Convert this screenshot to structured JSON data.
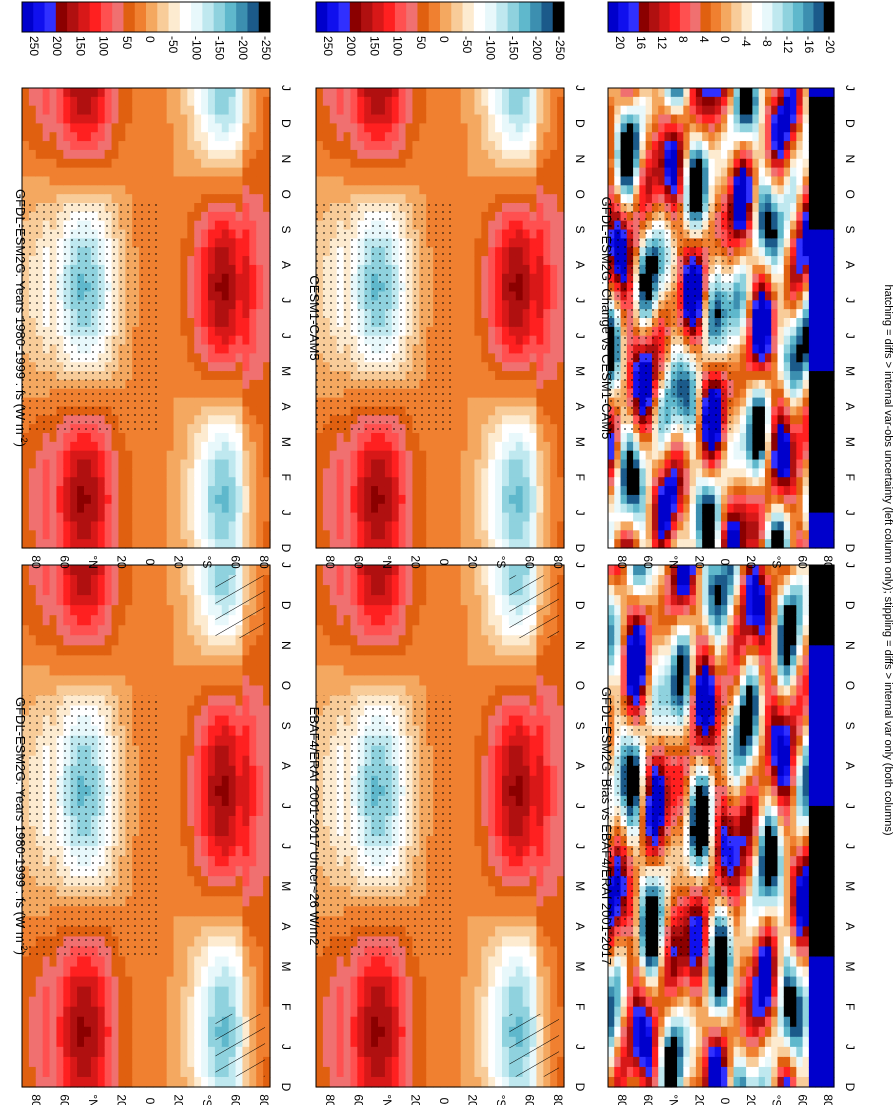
{
  "figure_caption": "hatching = diffs > internal var-obs uncertainty (left column only); stippling = diffs > internal var only (both columns)",
  "chart_data": [
    {
      "type": "heatmap",
      "title": "GFDL-ESM2G: Years 1980-1999 : fs (W m",
      "title_sup": "-2",
      "title_end": ")",
      "x_ticks": [
        "D",
        "J",
        "F",
        "M",
        "A",
        "M",
        "J",
        "J",
        "A",
        "S",
        "O",
        "N",
        "D",
        "J"
      ],
      "y_ticks": [
        "80",
        "60",
        "°N",
        "20",
        "0",
        "20",
        "°S",
        "60",
        "80"
      ],
      "colorbar": {
        "labels": [
          "250",
          "200",
          "150",
          "100",
          "50",
          "0",
          "-50",
          "-100",
          "-150",
          "-200",
          "-250"
        ],
        "range": [
          -250,
          250
        ]
      },
      "field": "seasonal_cycle_flux",
      "hatching": true
    },
    {
      "type": "heatmap",
      "title": "GFDL-ESM2G: Years 1980-1999 : fs (W m",
      "title_sup": "-2",
      "title_end": ")",
      "x_ticks": [
        "D",
        "J",
        "F",
        "M",
        "A",
        "M",
        "J",
        "J",
        "A",
        "S",
        "O",
        "N",
        "D",
        "J"
      ],
      "y_ticks": [
        "80",
        "60",
        "°N",
        "20",
        "0",
        "20",
        "°S",
        "60",
        "80"
      ],
      "colorbar": {
        "labels": [
          "250",
          "200",
          "150",
          "100",
          "50",
          "0",
          "-50",
          "-100",
          "-150",
          "-200",
          "-250"
        ],
        "range": [
          -250,
          250
        ]
      },
      "field": "seasonal_cycle_flux",
      "hatching": false
    },
    {
      "type": "heatmap",
      "title": "EBAF4/ERAI 2001-2017 Uncer~26 W/m2",
      "x_ticks": [
        "D",
        "J",
        "F",
        "M",
        "A",
        "M",
        "J",
        "J",
        "A",
        "S",
        "O",
        "N",
        "D",
        "J"
      ],
      "y_ticks": [
        "80",
        "60",
        "°N",
        "20",
        "0",
        "20",
        "°S",
        "60",
        "80"
      ],
      "colorbar": {
        "labels": [
          "250",
          "200",
          "150",
          "100",
          "50",
          "0",
          "-50",
          "-100",
          "-150",
          "-200",
          "-250"
        ],
        "range": [
          -250,
          250
        ]
      },
      "field": "seasonal_cycle_flux",
      "hatching": true
    },
    {
      "type": "heatmap",
      "title": "CESM1-CAM5",
      "x_ticks": [
        "D",
        "J",
        "F",
        "M",
        "A",
        "M",
        "J",
        "J",
        "A",
        "S",
        "O",
        "N",
        "D",
        "J"
      ],
      "y_ticks": [
        "80",
        "60",
        "°N",
        "20",
        "0",
        "20",
        "°S",
        "60",
        "80"
      ],
      "colorbar": {
        "labels": [
          "250",
          "200",
          "150",
          "100",
          "50",
          "0",
          "-50",
          "-100",
          "-150",
          "-200",
          "-250"
        ],
        "range": [
          -250,
          250
        ]
      },
      "field": "seasonal_cycle_flux",
      "hatching": false
    },
    {
      "type": "heatmap",
      "title": "GFDL-ESM2G: Bias vs EBAF4/ERAI 2001-2017",
      "x_ticks": [
        "D",
        "J",
        "F",
        "M",
        "A",
        "M",
        "J",
        "J",
        "A",
        "S",
        "O",
        "N",
        "D",
        "J"
      ],
      "y_ticks": [
        "80",
        "60",
        "°N",
        "20",
        "0",
        "20",
        "°S",
        "60",
        "80"
      ],
      "colorbar": {
        "labels": [
          "20",
          "16",
          "12",
          "8",
          "4",
          "0",
          "-4",
          "-8",
          "-12",
          "-16",
          "-20"
        ],
        "range": [
          -20,
          20
        ]
      },
      "field": "bias",
      "hatching": false
    },
    {
      "type": "heatmap",
      "title": "GFDL-ESM2G: Change vs CESM1-CAM5",
      "x_ticks": [
        "D",
        "J",
        "F",
        "M",
        "A",
        "M",
        "J",
        "J",
        "A",
        "S",
        "O",
        "N",
        "D",
        "J"
      ],
      "y_ticks": [
        "80",
        "60",
        "°N",
        "20",
        "0",
        "20",
        "°S",
        "60",
        "80"
      ],
      "colorbar": {
        "labels": [
          "20",
          "16",
          "12",
          "8",
          "4",
          "0",
          "-4",
          "-8",
          "-12",
          "-16",
          "-20"
        ],
        "range": [
          -20,
          20
        ]
      },
      "field": "change",
      "hatching": false
    }
  ]
}
